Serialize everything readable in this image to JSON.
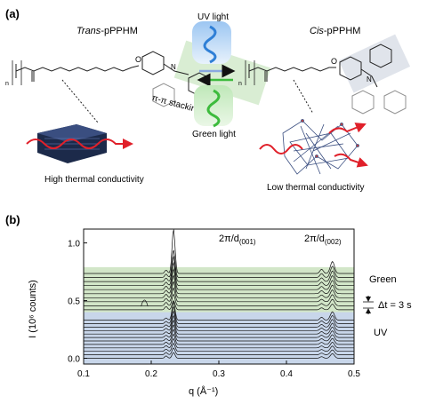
{
  "panel_a": {
    "label": "(a)",
    "trans_title_italic": "Trans",
    "trans_title_rest": "-pPPHM",
    "cis_title_italic": "Cis",
    "cis_title_rest": "-pPPHM",
    "subscript_n": "n",
    "atom_o": "O",
    "atom_n": "N",
    "stacking_label": "π-π stacking",
    "uv_light_label": "UV light",
    "green_light_label": "Green light",
    "high_tc_label": "High thermal conductivity",
    "low_tc_label": "Low thermal conductivity",
    "colors": {
      "uv": "#2f7fd6",
      "green": "#3dbb3d",
      "heat_arrow": "#e0202a"
    }
  },
  "panel_b": {
    "label": "(b)",
    "peak1_label": "2π/d",
    "peak1_sub": "(001)",
    "peak2_label": "2π/d",
    "peak2_sub": "(002)",
    "green_label": "Green",
    "dt_label": "Δt = 3 s",
    "uv_label": "UV",
    "colors": {
      "uv_fill": "#c8d6ea",
      "green_fill": "#d2e6c8",
      "trace": "#111111"
    }
  },
  "chart_data": {
    "type": "line",
    "xlabel": "q (Å⁻¹)",
    "ylabel": "I (10⁶ counts)",
    "xlim": [
      0.1,
      0.5
    ],
    "ylim": [
      -0.05,
      1.12
    ],
    "xticks": [
      "0.1",
      "0.2",
      "0.3",
      "0.4",
      "0.5"
    ],
    "yticks": [
      "0.0",
      "0.5",
      "1.0"
    ],
    "x_tick_values": [
      0.1,
      0.2,
      0.3,
      0.4,
      0.5
    ],
    "y_tick_values": [
      0.0,
      0.5,
      1.0
    ],
    "uv_series_count": 12,
    "green_series_count": 10,
    "uv_offset_step": 0.03,
    "green_offset_step": 0.035,
    "uv_base": 0.0,
    "green_base": 0.42,
    "peak_001_q": 0.233,
    "peak_002_q": 0.468,
    "max_peak_intensity": 1.12
  }
}
